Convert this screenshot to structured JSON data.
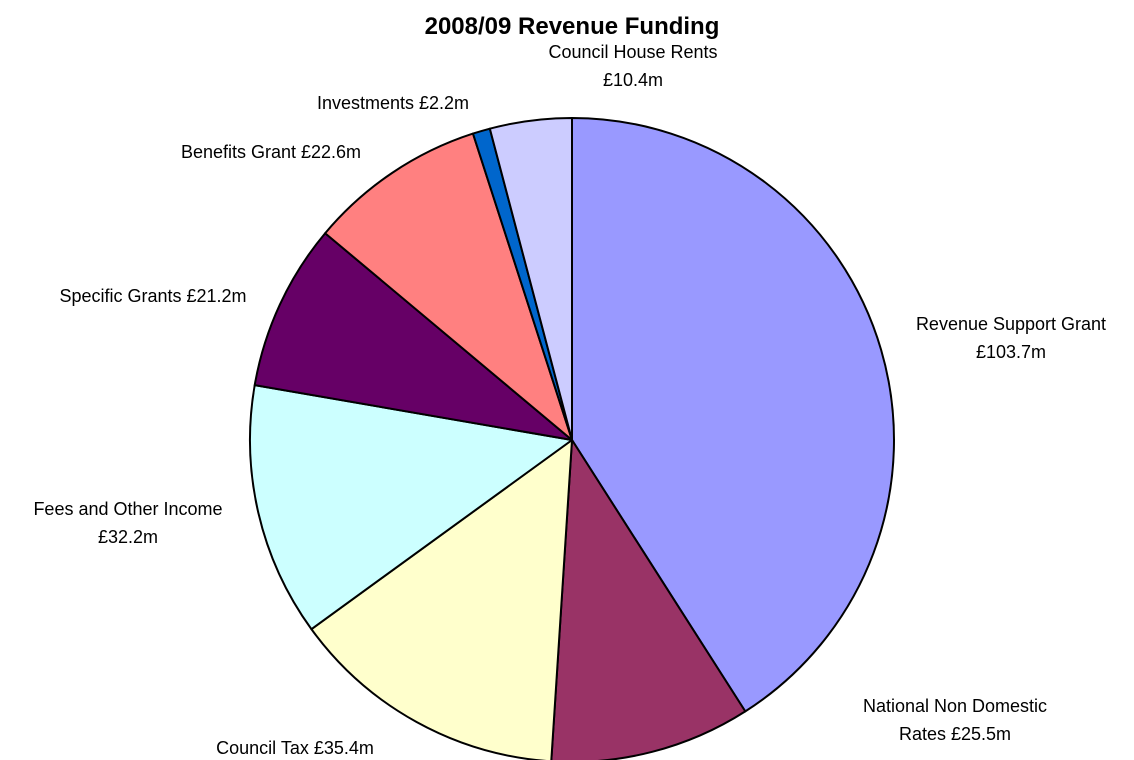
{
  "chart_data": {
    "type": "pie",
    "title": "2008/09 Revenue Funding",
    "currency": "£",
    "unit": "m",
    "slices": [
      {
        "name": "Revenue Support Grant",
        "value": 103.7,
        "color": "#9999FF",
        "label_lines": [
          "Revenue Support Grant",
          "£103.7m"
        ]
      },
      {
        "name": "National Non Domestic Rates",
        "value": 25.5,
        "color": "#993366",
        "label_lines": [
          "National Non Domestic",
          "Rates £25.5m"
        ]
      },
      {
        "name": "Council Tax",
        "value": 35.4,
        "color": "#FFFFCC",
        "label_lines": [
          "Council Tax £35.4m"
        ]
      },
      {
        "name": "Fees and Other Income",
        "value": 32.2,
        "color": "#CCFFFF",
        "label_lines": [
          "Fees and Other Income",
          "£32.2m"
        ]
      },
      {
        "name": "Specific Grants",
        "value": 21.2,
        "color": "#660066",
        "label_lines": [
          "Specific Grants £21.2m"
        ]
      },
      {
        "name": "Benefits Grant",
        "value": 22.6,
        "color": "#FF8080",
        "label_lines": [
          "Benefits Grant £22.6m"
        ]
      },
      {
        "name": "Investments",
        "value": 2.2,
        "color": "#0066CC",
        "label_lines": [
          "Investments £2.2m"
        ]
      },
      {
        "name": "Council House Rents",
        "value": 10.4,
        "color": "#CCCCFF",
        "label_lines": [
          "Council House Rents",
          "£10.4m"
        ]
      }
    ],
    "start_angle": "12 o'clock",
    "direction": "clockwise",
    "legend": "none"
  }
}
